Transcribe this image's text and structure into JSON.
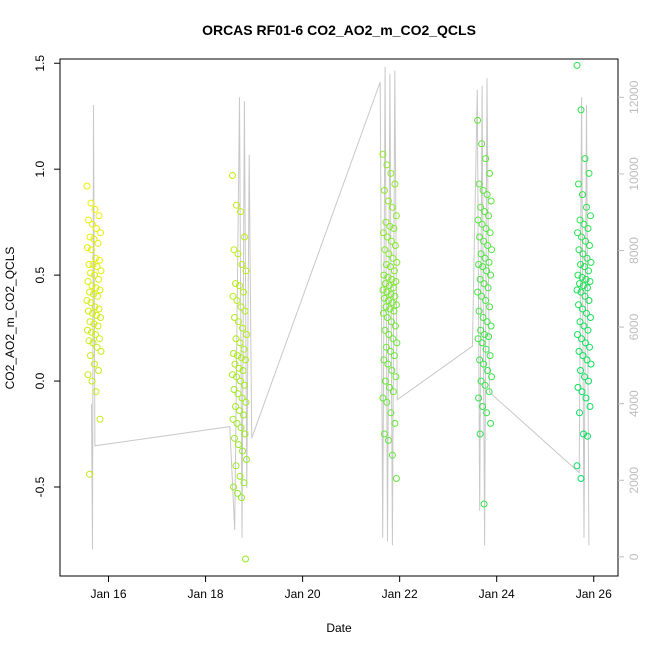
{
  "chart_data": {
    "type": "scatter",
    "title": "ORCAS RF01-6 CO2_AO2_m_CO2_QCLS",
    "xlabel": "Date",
    "ylabel": "CO2_AO2_m_CO2_QCLS",
    "x_tick_labels": [
      "Jan 16",
      "Jan 18",
      "Jan 20",
      "Jan 22",
      "Jan 24",
      "Jan 26"
    ],
    "x_ticks_days": [
      16,
      18,
      20,
      22,
      24,
      26
    ],
    "xlim_days": [
      15.0,
      26.5
    ],
    "y_tick_labels": [
      "-0.5",
      "0.0",
      "0.5",
      "1.0",
      "1.5"
    ],
    "y_ticks": [
      -0.5,
      0.0,
      0.5,
      1.0,
      1.5
    ],
    "ylim": [
      -0.92,
      1.52
    ],
    "y2_tick_labels": [
      "0",
      "2000",
      "4000",
      "6000",
      "8000",
      "10000",
      "12000"
    ],
    "y2_ticks": [
      0,
      2000,
      4000,
      6000,
      8000,
      10000,
      12000
    ],
    "y2lim": [
      -500,
      13000
    ],
    "grid": false,
    "legend": "none",
    "colors": {
      "series_start": "#f0f000",
      "series_end": "#00e060",
      "altitude_line": "#c8c8c8"
    },
    "flights": [
      {
        "day": 15.7,
        "values": [
          0.92,
          0.84,
          0.81,
          0.78,
          0.76,
          0.74,
          0.72,
          0.7,
          0.68,
          0.67,
          0.65,
          0.63,
          0.62,
          0.58,
          0.57,
          0.55,
          0.55,
          0.54,
          0.52,
          0.51,
          0.5,
          0.48,
          0.47,
          0.45,
          0.44,
          0.43,
          0.42,
          0.41,
          0.4,
          0.38,
          0.37,
          0.35,
          0.34,
          0.33,
          0.32,
          0.31,
          0.3,
          0.28,
          0.27,
          0.26,
          0.24,
          0.23,
          0.22,
          0.2,
          0.19,
          0.18,
          0.16,
          0.14,
          0.12,
          0.08,
          0.05,
          0.03,
          0.0,
          -0.05,
          -0.18,
          -0.44
        ]
      },
      {
        "day": 18.7,
        "values": [
          0.97,
          0.83,
          0.8,
          0.68,
          0.62,
          0.6,
          0.55,
          0.52,
          0.46,
          0.45,
          0.42,
          0.4,
          0.38,
          0.35,
          0.33,
          0.3,
          0.28,
          0.25,
          0.22,
          0.2,
          0.18,
          0.15,
          0.13,
          0.12,
          0.11,
          0.1,
          0.08,
          0.06,
          0.05,
          0.03,
          0.02,
          0.0,
          -0.02,
          -0.04,
          -0.06,
          -0.08,
          -0.1,
          -0.12,
          -0.14,
          -0.16,
          -0.18,
          -0.2,
          -0.22,
          -0.25,
          -0.27,
          -0.3,
          -0.33,
          -0.37,
          -0.4,
          -0.45,
          -0.48,
          -0.5,
          -0.53,
          -0.55,
          -0.84
        ]
      },
      {
        "day": 21.8,
        "values": [
          1.07,
          1.02,
          0.98,
          0.93,
          0.9,
          0.85,
          0.82,
          0.78,
          0.75,
          0.73,
          0.72,
          0.7,
          0.68,
          0.66,
          0.64,
          0.62,
          0.6,
          0.58,
          0.56,
          0.55,
          0.54,
          0.52,
          0.5,
          0.49,
          0.48,
          0.47,
          0.46,
          0.45,
          0.44,
          0.43,
          0.42,
          0.41,
          0.4,
          0.39,
          0.38,
          0.37,
          0.36,
          0.35,
          0.34,
          0.33,
          0.32,
          0.3,
          0.28,
          0.26,
          0.24,
          0.22,
          0.2,
          0.18,
          0.16,
          0.14,
          0.12,
          0.1,
          0.08,
          0.05,
          0.02,
          0.0,
          -0.03,
          -0.05,
          -0.08,
          -0.1,
          -0.15,
          -0.2,
          -0.25,
          -0.28,
          -0.35,
          -0.46
        ]
      },
      {
        "day": 23.75,
        "values": [
          1.23,
          1.12,
          1.05,
          0.98,
          0.93,
          0.9,
          0.88,
          0.85,
          0.82,
          0.8,
          0.78,
          0.76,
          0.74,
          0.72,
          0.7,
          0.68,
          0.66,
          0.64,
          0.62,
          0.6,
          0.58,
          0.56,
          0.55,
          0.54,
          0.52,
          0.5,
          0.48,
          0.46,
          0.44,
          0.42,
          0.4,
          0.38,
          0.35,
          0.33,
          0.3,
          0.28,
          0.26,
          0.24,
          0.22,
          0.21,
          0.2,
          0.18,
          0.15,
          0.12,
          0.1,
          0.08,
          0.05,
          0.02,
          0.0,
          -0.02,
          -0.05,
          -0.08,
          -0.12,
          -0.15,
          -0.2,
          -0.25,
          -0.58
        ]
      },
      {
        "day": 25.8,
        "values": [
          1.49,
          1.28,
          1.05,
          0.98,
          0.93,
          0.88,
          0.82,
          0.78,
          0.76,
          0.74,
          0.72,
          0.7,
          0.68,
          0.66,
          0.64,
          0.62,
          0.6,
          0.58,
          0.56,
          0.55,
          0.54,
          0.52,
          0.5,
          0.49,
          0.48,
          0.47,
          0.46,
          0.45,
          0.44,
          0.43,
          0.42,
          0.4,
          0.38,
          0.36,
          0.34,
          0.32,
          0.3,
          0.28,
          0.26,
          0.24,
          0.22,
          0.2,
          0.18,
          0.16,
          0.14,
          0.12,
          0.1,
          0.08,
          0.05,
          0.02,
          0.0,
          -0.03,
          -0.05,
          -0.08,
          -0.12,
          -0.15,
          -0.25,
          -0.26,
          -0.4,
          -0.46
        ]
      }
    ],
    "altitude_trace": [
      [
        15.65,
        4000
      ],
      [
        15.67,
        200
      ],
      [
        15.69,
        11800
      ],
      [
        15.72,
        2900
      ],
      [
        18.5,
        3400
      ],
      [
        18.6,
        700
      ],
      [
        18.7,
        12000
      ],
      [
        18.75,
        500
      ],
      [
        18.8,
        11900
      ],
      [
        18.85,
        1800
      ],
      [
        18.9,
        10500
      ],
      [
        18.95,
        3100
      ],
      [
        21.6,
        12400
      ],
      [
        21.65,
        500
      ],
      [
        21.7,
        12800
      ],
      [
        21.75,
        400
      ],
      [
        21.8,
        12600
      ],
      [
        21.85,
        300
      ],
      [
        21.9,
        12700
      ],
      [
        21.95,
        4100
      ],
      [
        23.5,
        5500
      ],
      [
        23.6,
        12200
      ],
      [
        23.65,
        1200
      ],
      [
        23.7,
        12300
      ],
      [
        23.75,
        300
      ],
      [
        23.8,
        12500
      ],
      [
        23.85,
        4300
      ],
      [
        25.7,
        2200
      ],
      [
        25.75,
        12000
      ],
      [
        25.8,
        500
      ],
      [
        25.85,
        11800
      ],
      [
        25.9,
        300
      ]
    ]
  }
}
